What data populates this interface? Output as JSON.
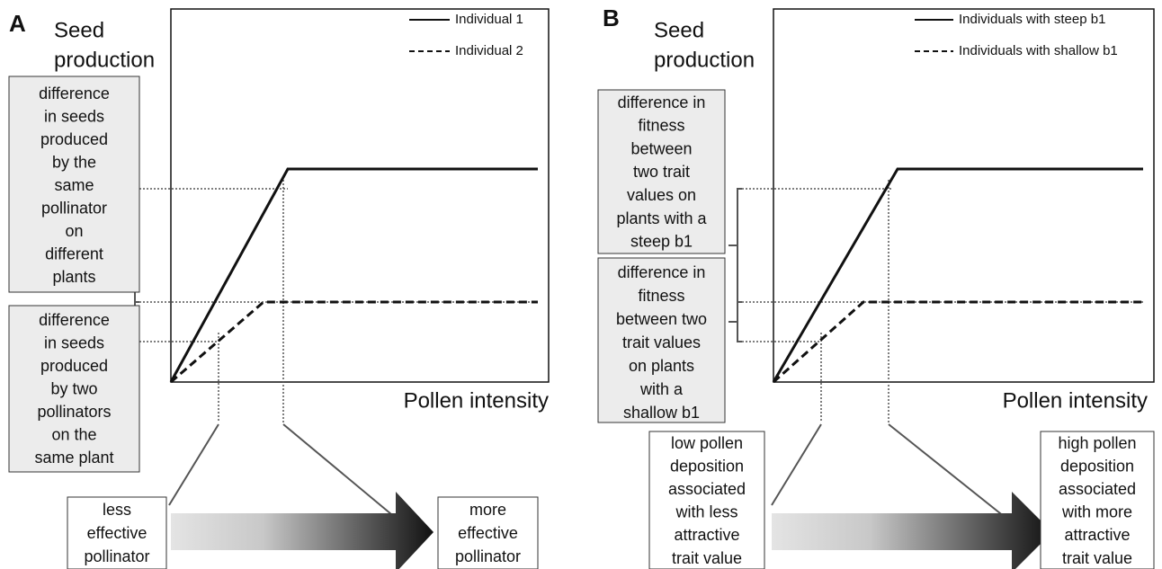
{
  "panels": [
    {
      "label": "A",
      "y_axis_label": [
        "Seed",
        "production"
      ],
      "x_axis_label": "Pollen intensity",
      "legend": [
        "Individual 1",
        "Individual 2"
      ],
      "left_boxes": [
        [
          "difference",
          "in seeds",
          "produced",
          "by the",
          "same",
          "pollinator",
          "on",
          "different",
          "plants"
        ],
        [
          "difference",
          "in seeds",
          "produced",
          "by two",
          "pollinators",
          "on the",
          "same plant"
        ]
      ],
      "bottom_left": [
        "less",
        "effective",
        "pollinator"
      ],
      "bottom_right": [
        "more",
        "effective",
        "pollinator"
      ]
    },
    {
      "label": "B",
      "y_axis_label": [
        "Seed",
        "production"
      ],
      "x_axis_label": "Pollen intensity",
      "legend": [
        "Individuals with steep b1",
        "Individuals with shallow b1"
      ],
      "left_boxes": [
        [
          "difference in",
          "fitness",
          "between",
          "two trait",
          "values on",
          "plants with a",
          "steep b1"
        ],
        [
          "difference in",
          "fitness",
          "between two",
          "trait values",
          "on plants",
          "with a",
          "shallow b1"
        ]
      ],
      "bottom_left": [
        "low pollen",
        "deposition",
        "associated",
        "with less",
        "attractive",
        "trait value"
      ],
      "bottom_right": [
        "high pollen",
        "deposition",
        "associated",
        "with more",
        "attractive",
        "trait value"
      ]
    }
  ]
}
